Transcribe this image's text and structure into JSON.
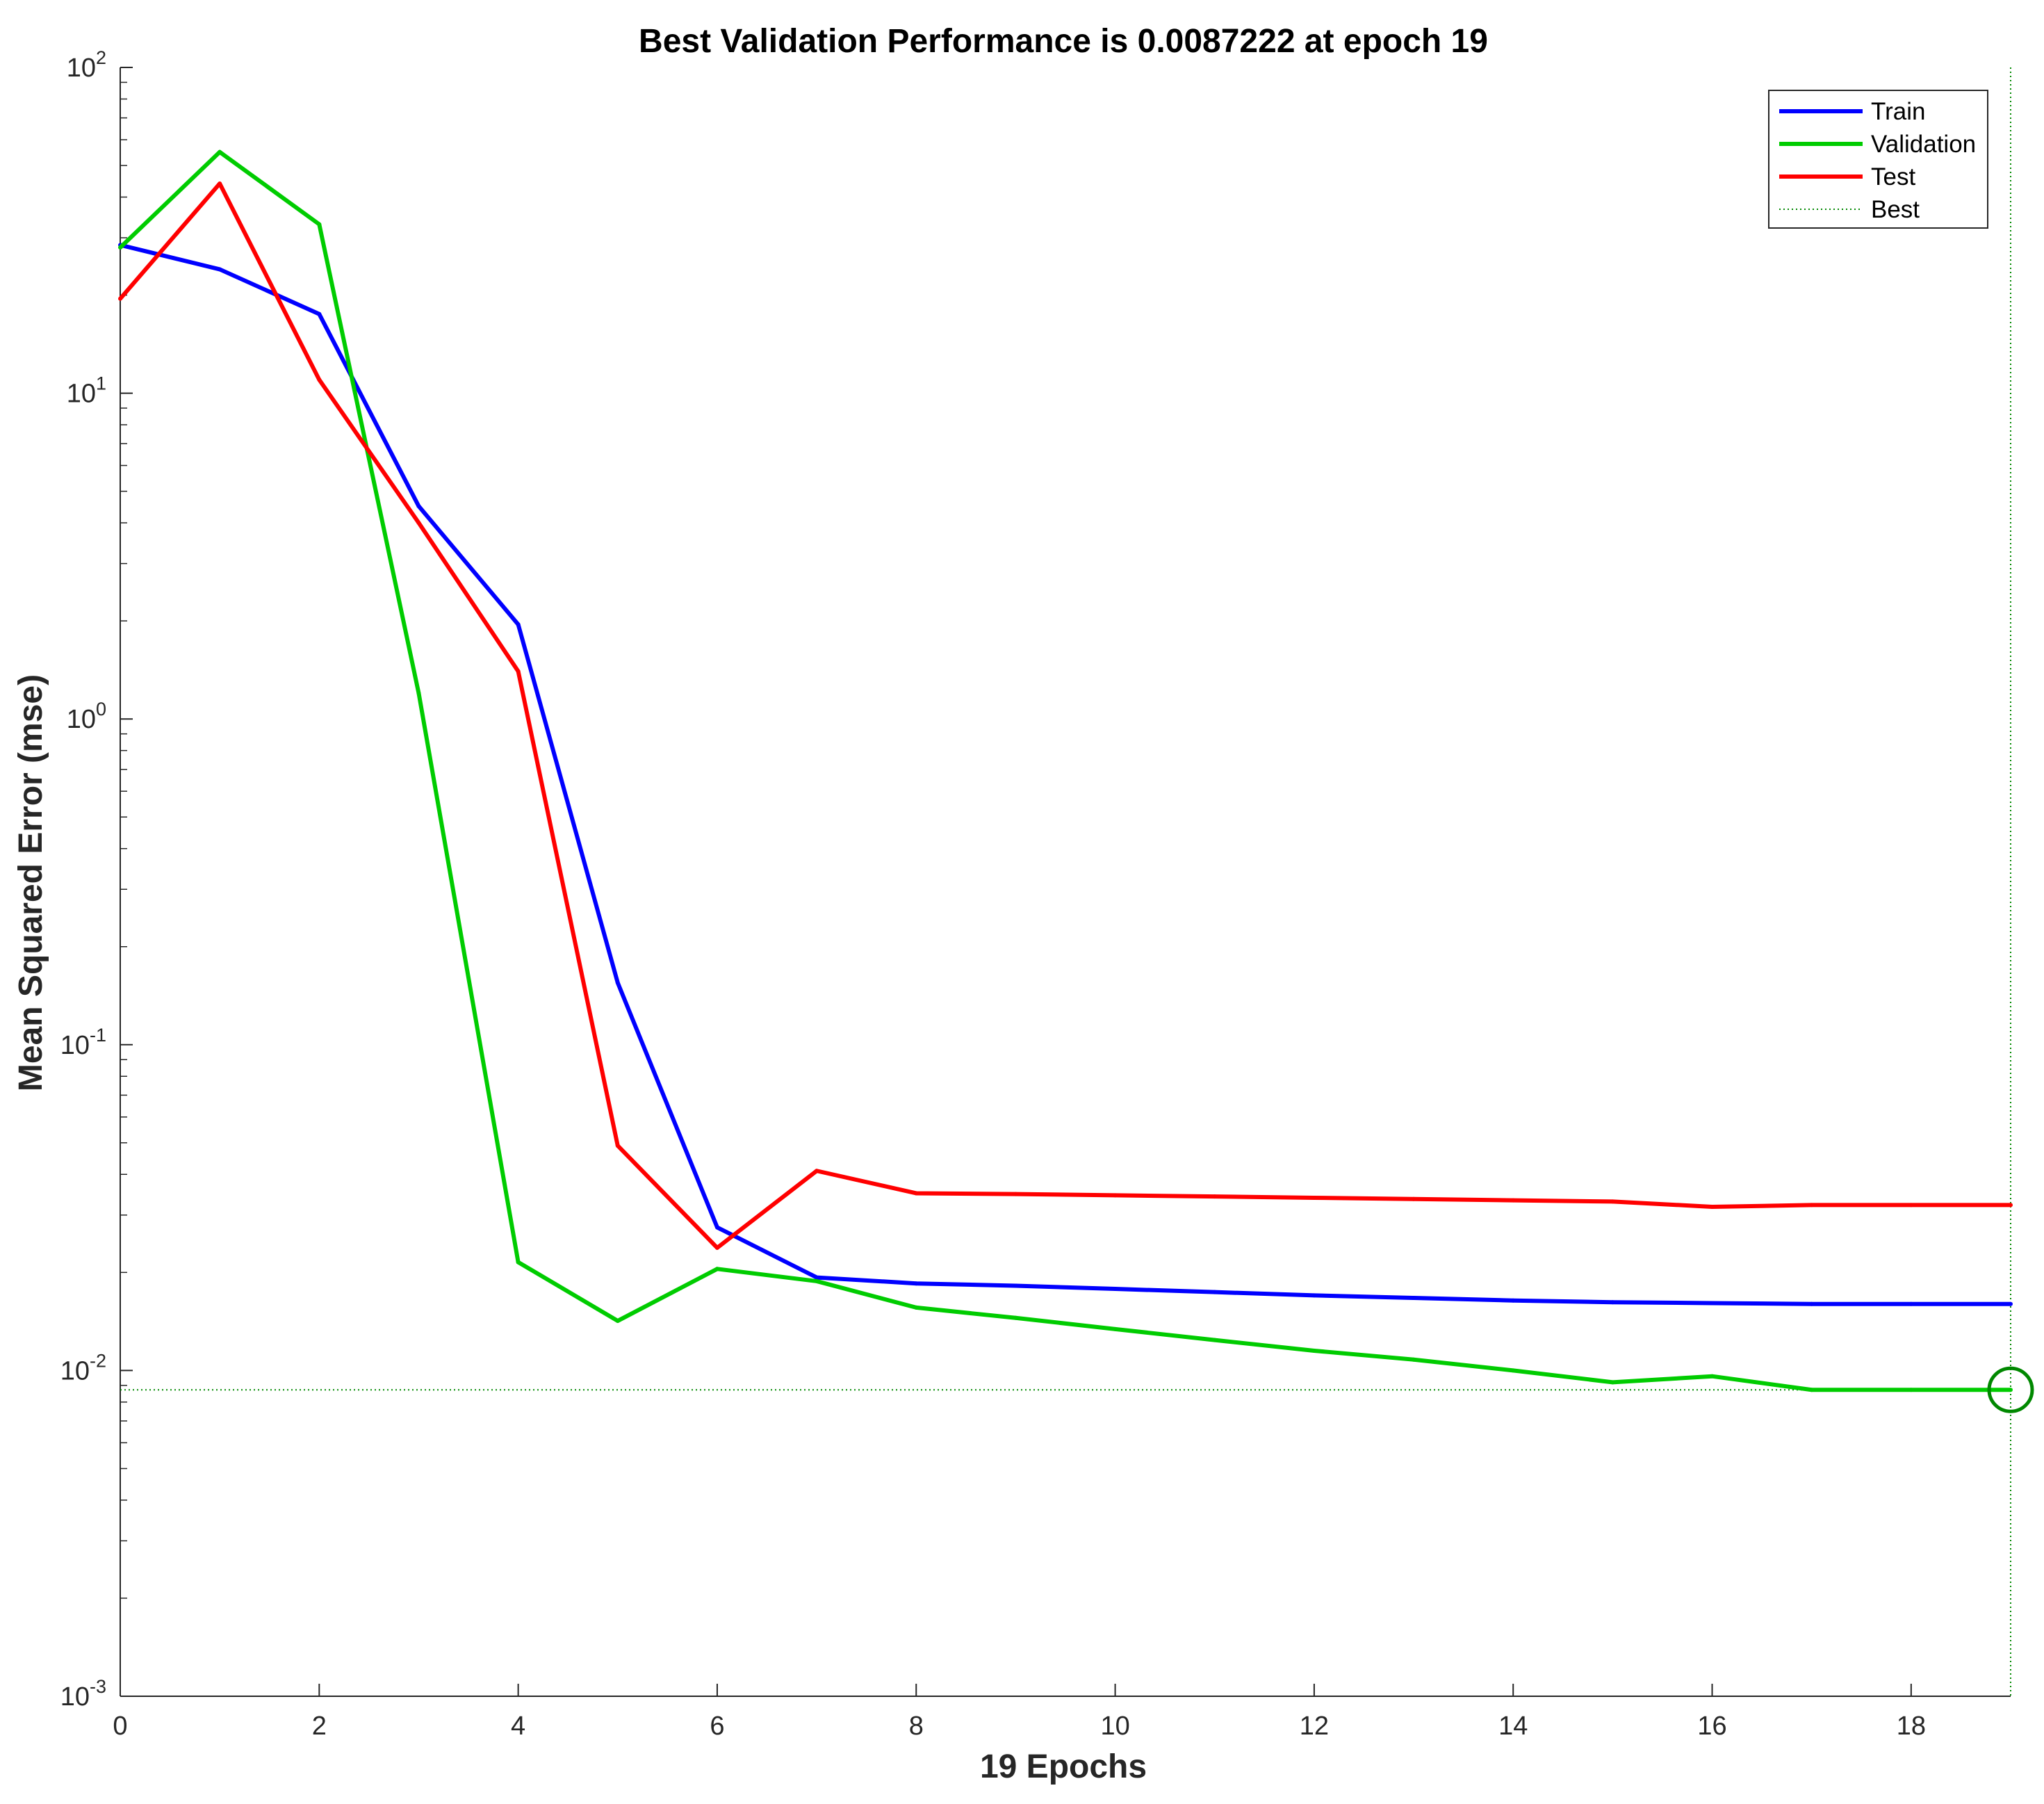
{
  "chart_data": {
    "type": "line",
    "title": "Best Validation Performance is 0.0087222 at epoch 19",
    "xlabel": "19 Epochs",
    "ylabel": "Mean Squared Error  (mse)",
    "xlim": [
      0,
      19
    ],
    "ylim": [
      0.001,
      100
    ],
    "yscale": "log",
    "xticks": [
      0,
      2,
      4,
      6,
      8,
      10,
      12,
      14,
      16,
      18
    ],
    "xtick_labels": [
      "0",
      "2",
      "4",
      "6",
      "8",
      "10",
      "12",
      "14",
      "16",
      "18"
    ],
    "yticks": [
      0.001,
      0.01,
      0.1,
      1,
      10,
      100
    ],
    "ytick_base": "10",
    "ytick_exponents": [
      "-3",
      "-2",
      "-1",
      "0",
      "1",
      "2"
    ],
    "grid": false,
    "legend_position": "top-right",
    "x": [
      0,
      1,
      2,
      3,
      4,
      5,
      6,
      7,
      8,
      9,
      10,
      11,
      12,
      13,
      14,
      15,
      16,
      17,
      18,
      19
    ],
    "series": [
      {
        "name": "Train",
        "color": "#0000ff",
        "style": "solid",
        "values": [
          28.5,
          24,
          17.5,
          4.5,
          1.95,
          0.155,
          0.0275,
          0.0193,
          0.0185,
          0.0182,
          0.0178,
          0.0174,
          0.017,
          0.0167,
          0.0164,
          0.0162,
          0.0161,
          0.016,
          0.016,
          0.016
        ]
      },
      {
        "name": "Validation",
        "color": "#00cc00",
        "style": "solid",
        "values": [
          28,
          55,
          33,
          1.2,
          0.0215,
          0.0142,
          0.0205,
          0.0188,
          0.0156,
          0.0145,
          0.0134,
          0.0124,
          0.0115,
          0.0108,
          0.01,
          0.0092,
          0.0096,
          0.0087222,
          0.0087222,
          0.0087222
        ]
      },
      {
        "name": "Test",
        "color": "#ff0000",
        "style": "solid",
        "values": [
          19.5,
          44,
          11,
          4.0,
          1.4,
          0.049,
          0.0238,
          0.041,
          0.035,
          0.0348,
          0.0345,
          0.0342,
          0.0339,
          0.0336,
          0.0333,
          0.033,
          0.0318,
          0.0322,
          0.0322,
          0.0322
        ]
      },
      {
        "name": "Best",
        "color": "#008800",
        "style": "dotted",
        "best_epoch": 19,
        "best_value": 0.0087222
      }
    ]
  }
}
